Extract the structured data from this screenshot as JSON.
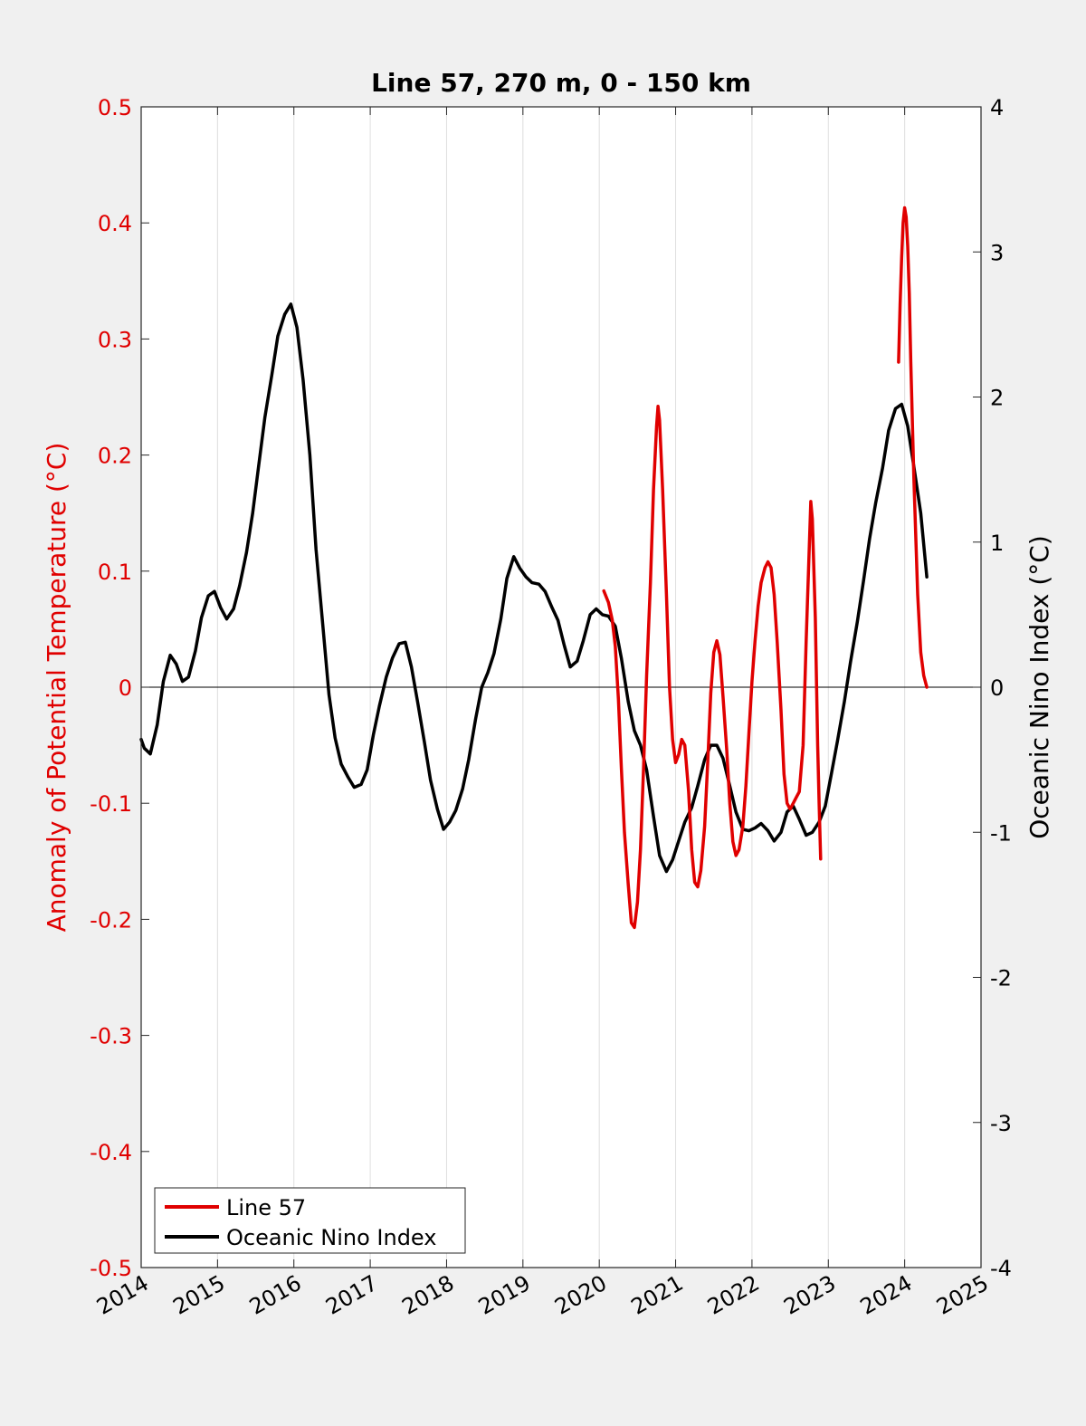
{
  "chart_data": {
    "type": "line",
    "title": "Line 57, 270 m, 0 - 150 km",
    "xlabel": "",
    "ylabel": "Anomaly of Potential Temperature (°C)",
    "y2label": "Oceanic Nino Index (°C)",
    "xlim": [
      2014,
      2025
    ],
    "ylim": [
      -0.5,
      0.5
    ],
    "y2lim": [
      -4,
      4
    ],
    "x_ticks": [
      "2014",
      "2015",
      "2016",
      "2017",
      "2018",
      "2019",
      "2020",
      "2021",
      "2022",
      "2023",
      "2024",
      "2025"
    ],
    "y_ticks": [
      "-0.5",
      "-0.4",
      "-0.3",
      "-0.2",
      "-0.1",
      "0",
      "0.1",
      "0.2",
      "0.3",
      "0.4",
      "0.5"
    ],
    "y2_ticks": [
      "-4",
      "-3",
      "-2",
      "-1",
      "0",
      "1",
      "2",
      "3",
      "4"
    ],
    "grid": "vertical",
    "legend_position": "bottom-left",
    "colors": {
      "line57": "#e00000",
      "oni": "#000000",
      "left_axis": "#e00000",
      "background": "#f0f0f0"
    },
    "series": [
      {
        "name": "Line 57",
        "axis": "left",
        "color": "#e00000",
        "segments": [
          [
            [
              2020.06,
              0.083
            ],
            [
              2020.12,
              0.073
            ],
            [
              2020.17,
              0.058
            ],
            [
              2020.21,
              0.035
            ],
            [
              2020.25,
              -0.01
            ],
            [
              2020.29,
              -0.07
            ],
            [
              2020.33,
              -0.125
            ],
            [
              2020.38,
              -0.17
            ],
            [
              2020.42,
              -0.203
            ],
            [
              2020.46,
              -0.207
            ],
            [
              2020.5,
              -0.185
            ],
            [
              2020.54,
              -0.14
            ],
            [
              2020.58,
              -0.07
            ],
            [
              2020.62,
              0.01
            ],
            [
              2020.67,
              0.09
            ],
            [
              2020.71,
              0.17
            ],
            [
              2020.75,
              0.225
            ],
            [
              2020.77,
              0.242
            ],
            [
              2020.79,
              0.23
            ],
            [
              2020.83,
              0.17
            ],
            [
              2020.88,
              0.08
            ],
            [
              2020.92,
              0.0
            ],
            [
              2020.96,
              -0.045
            ],
            [
              2021.0,
              -0.065
            ],
            [
              2021.04,
              -0.058
            ],
            [
              2021.08,
              -0.045
            ],
            [
              2021.12,
              -0.05
            ],
            [
              2021.17,
              -0.09
            ],
            [
              2021.21,
              -0.14
            ],
            [
              2021.25,
              -0.168
            ],
            [
              2021.29,
              -0.172
            ],
            [
              2021.33,
              -0.158
            ],
            [
              2021.38,
              -0.12
            ],
            [
              2021.42,
              -0.065
            ],
            [
              2021.46,
              -0.005
            ],
            [
              2021.5,
              0.03
            ],
            [
              2021.54,
              0.04
            ],
            [
              2021.58,
              0.028
            ],
            [
              2021.62,
              -0.008
            ],
            [
              2021.67,
              -0.055
            ],
            [
              2021.71,
              -0.1
            ],
            [
              2021.75,
              -0.133
            ],
            [
              2021.79,
              -0.145
            ],
            [
              2021.83,
              -0.14
            ],
            [
              2021.88,
              -0.12
            ],
            [
              2021.92,
              -0.085
            ],
            [
              2021.96,
              -0.04
            ],
            [
              2022.0,
              0.005
            ],
            [
              2022.04,
              0.04
            ],
            [
              2022.08,
              0.07
            ],
            [
              2022.12,
              0.09
            ],
            [
              2022.17,
              0.103
            ],
            [
              2022.21,
              0.108
            ],
            [
              2022.25,
              0.103
            ],
            [
              2022.29,
              0.08
            ],
            [
              2022.33,
              0.04
            ],
            [
              2022.38,
              -0.02
            ],
            [
              2022.42,
              -0.075
            ],
            [
              2022.46,
              -0.1
            ],
            [
              2022.5,
              -0.105
            ],
            [
              2022.54,
              -0.1
            ],
            [
              2022.58,
              -0.095
            ],
            [
              2022.62,
              -0.09
            ],
            [
              2022.67,
              -0.05
            ],
            [
              2022.71,
              0.04
            ],
            [
              2022.75,
              0.12
            ],
            [
              2022.77,
              0.16
            ],
            [
              2022.79,
              0.145
            ],
            [
              2022.83,
              0.06
            ],
            [
              2022.86,
              -0.05
            ],
            [
              2022.88,
              -0.1
            ],
            [
              2022.9,
              -0.148
            ]
          ],
          [
            [
              2023.92,
              0.28
            ],
            [
              2023.94,
              0.33
            ],
            [
              2023.96,
              0.37
            ],
            [
              2023.98,
              0.4
            ],
            [
              2024.0,
              0.413
            ],
            [
              2024.02,
              0.405
            ],
            [
              2024.04,
              0.38
            ],
            [
              2024.06,
              0.34
            ],
            [
              2024.08,
              0.28
            ],
            [
              2024.12,
              0.18
            ],
            [
              2024.17,
              0.08
            ],
            [
              2024.21,
              0.03
            ],
            [
              2024.25,
              0.01
            ],
            [
              2024.29,
              0.0
            ]
          ]
        ]
      },
      {
        "name": "Oceanic Nino Index",
        "axis": "right",
        "color": "#000000",
        "points": [
          [
            2014.0,
            -0.36
          ],
          [
            2014.04,
            -0.42
          ],
          [
            2014.12,
            -0.46
          ],
          [
            2014.21,
            -0.26
          ],
          [
            2014.29,
            0.04
          ],
          [
            2014.38,
            0.22
          ],
          [
            2014.46,
            0.16
          ],
          [
            2014.54,
            0.04
          ],
          [
            2014.62,
            0.07
          ],
          [
            2014.71,
            0.25
          ],
          [
            2014.79,
            0.48
          ],
          [
            2014.88,
            0.63
          ],
          [
            2014.96,
            0.66
          ],
          [
            2015.04,
            0.55
          ],
          [
            2015.12,
            0.47
          ],
          [
            2015.21,
            0.54
          ],
          [
            2015.29,
            0.7
          ],
          [
            2015.38,
            0.93
          ],
          [
            2015.46,
            1.2
          ],
          [
            2015.54,
            1.53
          ],
          [
            2015.62,
            1.86
          ],
          [
            2015.71,
            2.15
          ],
          [
            2015.79,
            2.42
          ],
          [
            2015.88,
            2.57
          ],
          [
            2015.96,
            2.64
          ],
          [
            2016.04,
            2.48
          ],
          [
            2016.12,
            2.12
          ],
          [
            2016.21,
            1.6
          ],
          [
            2016.29,
            0.95
          ],
          [
            2016.38,
            0.42
          ],
          [
            2016.46,
            -0.05
          ],
          [
            2016.54,
            -0.35
          ],
          [
            2016.62,
            -0.53
          ],
          [
            2016.71,
            -0.62
          ],
          [
            2016.79,
            -0.69
          ],
          [
            2016.88,
            -0.67
          ],
          [
            2016.96,
            -0.57
          ],
          [
            2017.04,
            -0.33
          ],
          [
            2017.12,
            -0.13
          ],
          [
            2017.21,
            0.07
          ],
          [
            2017.29,
            0.2
          ],
          [
            2017.38,
            0.3
          ],
          [
            2017.46,
            0.31
          ],
          [
            2017.54,
            0.14
          ],
          [
            2017.62,
            -0.1
          ],
          [
            2017.71,
            -0.38
          ],
          [
            2017.79,
            -0.64
          ],
          [
            2017.88,
            -0.84
          ],
          [
            2017.96,
            -0.98
          ],
          [
            2018.04,
            -0.93
          ],
          [
            2018.12,
            -0.85
          ],
          [
            2018.21,
            -0.7
          ],
          [
            2018.29,
            -0.5
          ],
          [
            2018.38,
            -0.22
          ],
          [
            2018.46,
            0.0
          ],
          [
            2018.54,
            0.1
          ],
          [
            2018.62,
            0.23
          ],
          [
            2018.71,
            0.47
          ],
          [
            2018.79,
            0.75
          ],
          [
            2018.88,
            0.9
          ],
          [
            2018.96,
            0.82
          ],
          [
            2019.04,
            0.76
          ],
          [
            2019.12,
            0.72
          ],
          [
            2019.21,
            0.71
          ],
          [
            2019.29,
            0.66
          ],
          [
            2019.38,
            0.55
          ],
          [
            2019.46,
            0.46
          ],
          [
            2019.54,
            0.29
          ],
          [
            2019.62,
            0.14
          ],
          [
            2019.71,
            0.18
          ],
          [
            2019.79,
            0.32
          ],
          [
            2019.88,
            0.5
          ],
          [
            2019.96,
            0.54
          ],
          [
            2020.04,
            0.5
          ],
          [
            2020.12,
            0.49
          ],
          [
            2020.21,
            0.42
          ],
          [
            2020.29,
            0.2
          ],
          [
            2020.38,
            -0.1
          ],
          [
            2020.46,
            -0.3
          ],
          [
            2020.54,
            -0.4
          ],
          [
            2020.62,
            -0.57
          ],
          [
            2020.71,
            -0.89
          ],
          [
            2020.79,
            -1.16
          ],
          [
            2020.88,
            -1.27
          ],
          [
            2020.96,
            -1.19
          ],
          [
            2021.04,
            -1.06
          ],
          [
            2021.12,
            -0.93
          ],
          [
            2021.21,
            -0.83
          ],
          [
            2021.29,
            -0.68
          ],
          [
            2021.38,
            -0.5
          ],
          [
            2021.46,
            -0.4
          ],
          [
            2021.54,
            -0.4
          ],
          [
            2021.62,
            -0.49
          ],
          [
            2021.71,
            -0.68
          ],
          [
            2021.79,
            -0.86
          ],
          [
            2021.88,
            -0.98
          ],
          [
            2021.96,
            -0.99
          ],
          [
            2022.04,
            -0.97
          ],
          [
            2022.12,
            -0.94
          ],
          [
            2022.21,
            -0.99
          ],
          [
            2022.29,
            -1.06
          ],
          [
            2022.38,
            -1.0
          ],
          [
            2022.46,
            -0.86
          ],
          [
            2022.54,
            -0.82
          ],
          [
            2022.62,
            -0.91
          ],
          [
            2022.71,
            -1.02
          ],
          [
            2022.79,
            -1.0
          ],
          [
            2022.88,
            -0.93
          ],
          [
            2022.96,
            -0.82
          ],
          [
            2023.04,
            -0.6
          ],
          [
            2023.12,
            -0.37
          ],
          [
            2023.21,
            -0.1
          ],
          [
            2023.29,
            0.17
          ],
          [
            2023.38,
            0.45
          ],
          [
            2023.46,
            0.73
          ],
          [
            2023.54,
            1.02
          ],
          [
            2023.62,
            1.27
          ],
          [
            2023.71,
            1.51
          ],
          [
            2023.79,
            1.77
          ],
          [
            2023.88,
            1.92
          ],
          [
            2023.96,
            1.95
          ],
          [
            2024.04,
            1.8
          ],
          [
            2024.12,
            1.52
          ],
          [
            2024.21,
            1.2
          ],
          [
            2024.29,
            0.76
          ]
        ]
      }
    ]
  }
}
